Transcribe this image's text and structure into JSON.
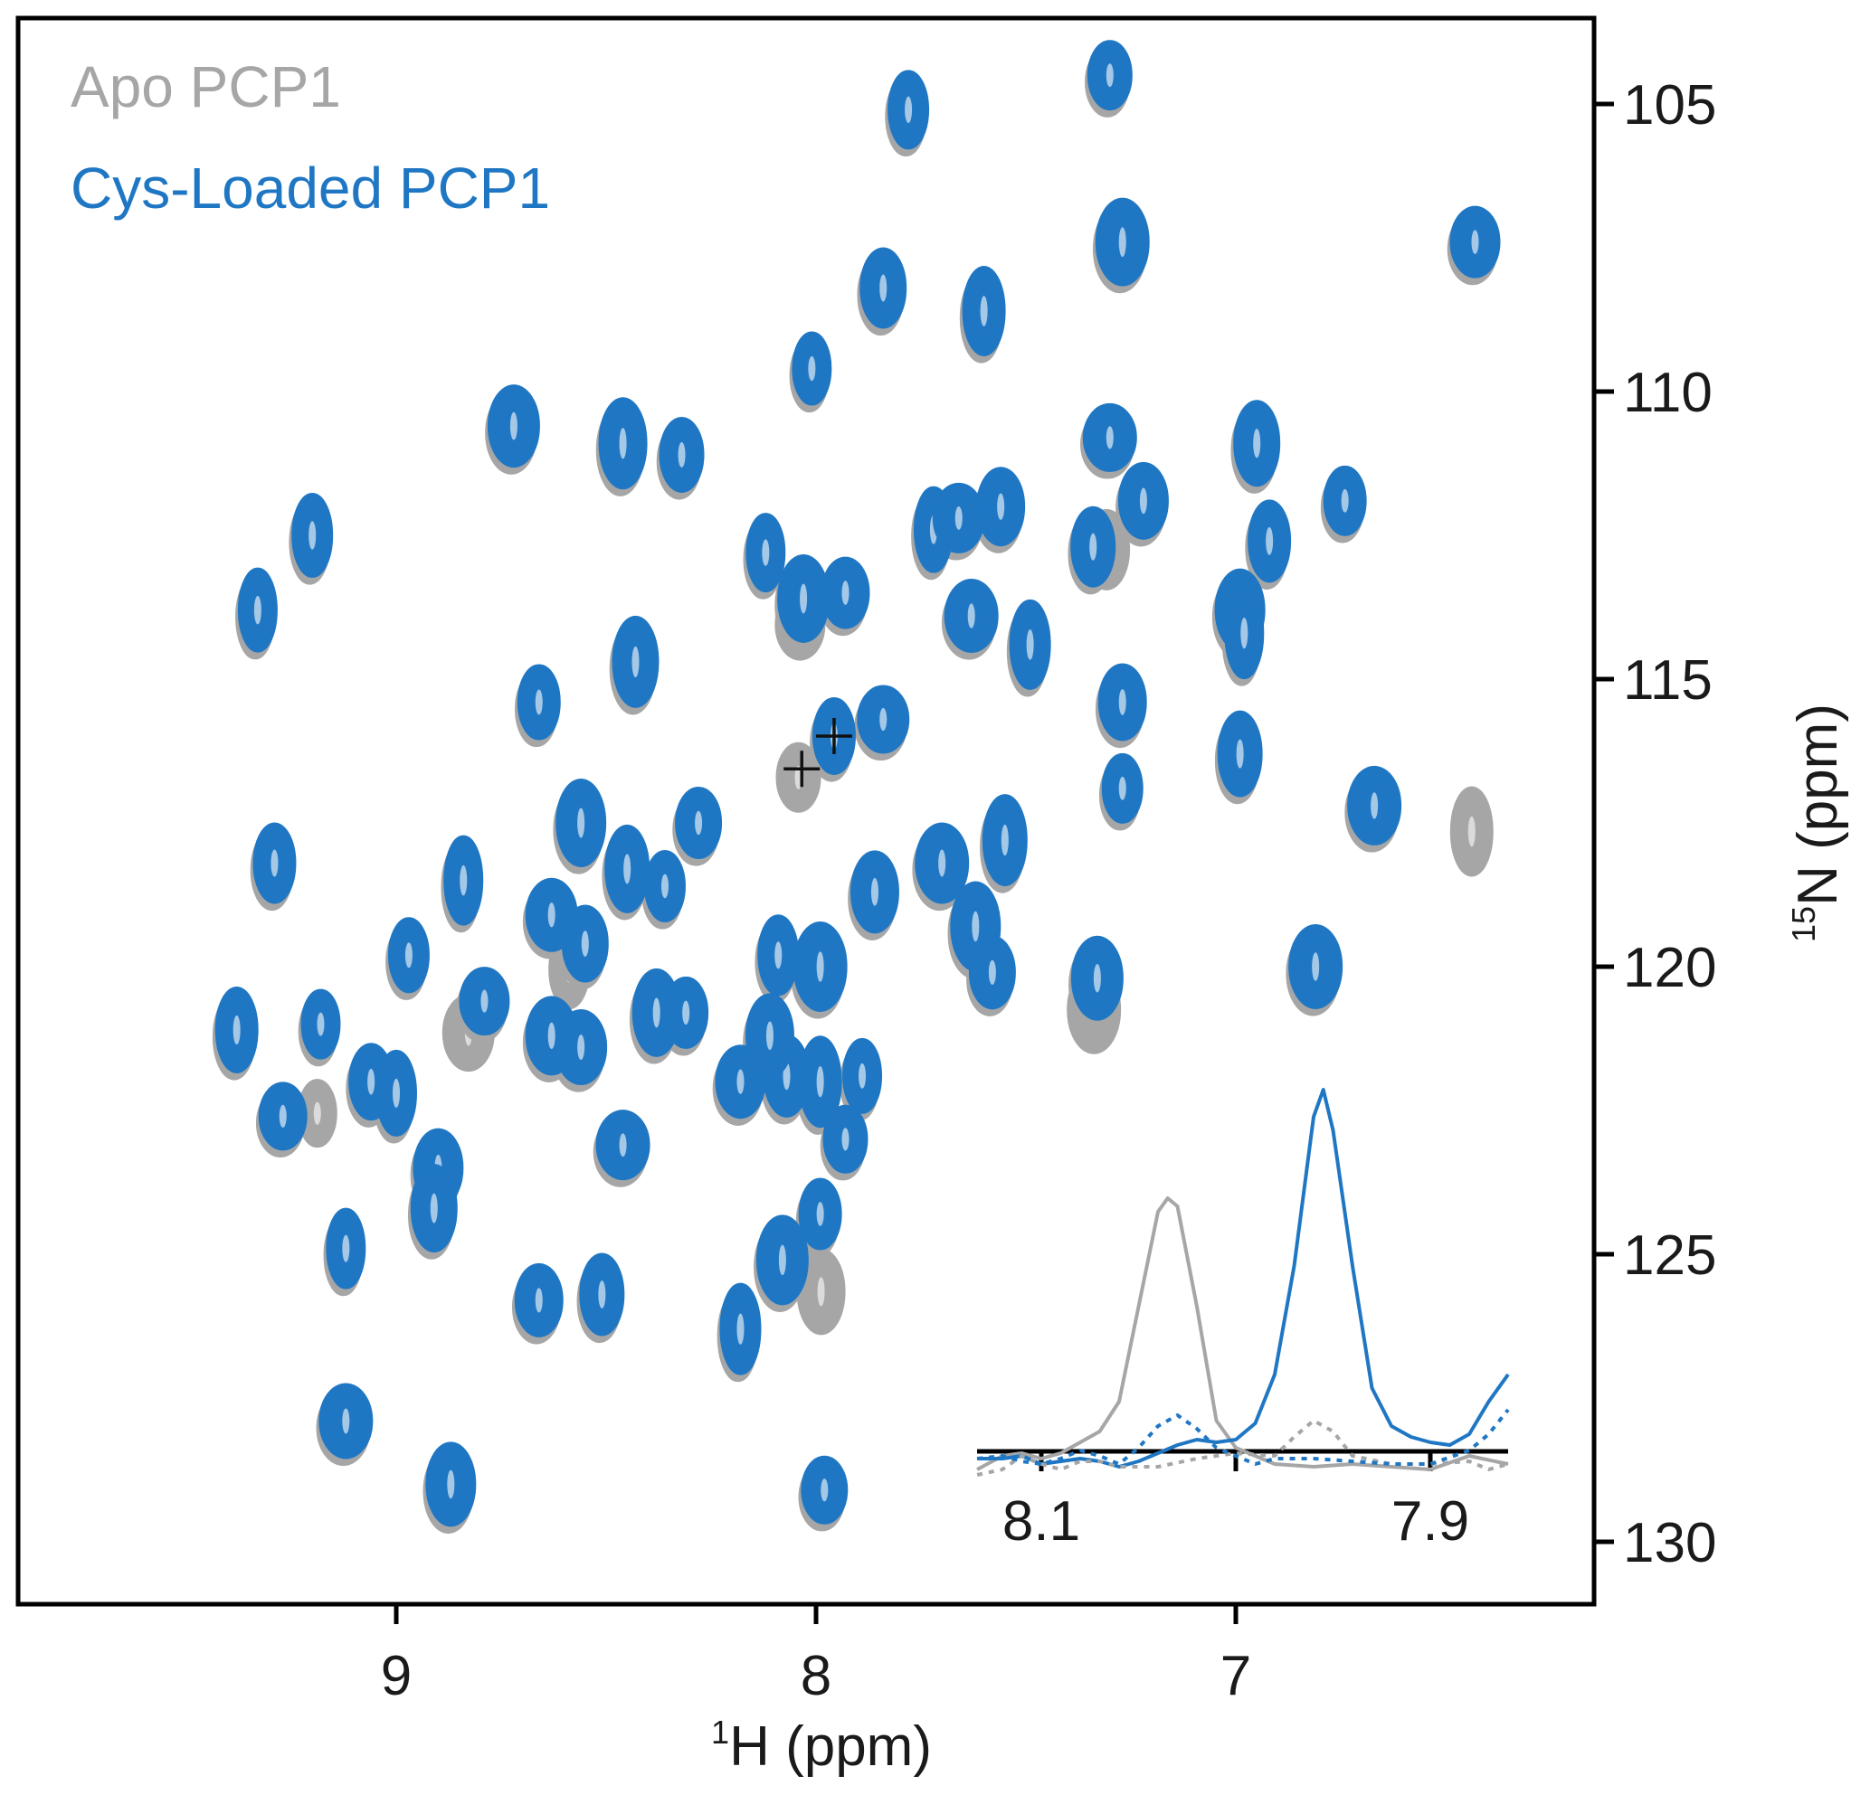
{
  "chart_data": {
    "type": "scatter",
    "subtype": "2D 1H-15N HSQC overlay",
    "title": "",
    "xlabel": "1H (ppm)",
    "xlabel_sup": "1",
    "xlabel_main": "H (ppm)",
    "ylabel": "15N (ppm)",
    "ylabel_sup": "15",
    "ylabel_main": "N (ppm)",
    "xlim": [
      9.9,
      6.15
    ],
    "ylim": [
      103.5,
      130.6
    ],
    "x_reversed": true,
    "y_reversed": true,
    "xticks": [
      9,
      8,
      7
    ],
    "xtick_labels": [
      "9",
      "8",
      "7"
    ],
    "yticks": [
      105,
      110,
      115,
      120,
      125,
      130
    ],
    "ytick_labels": [
      "105",
      "110",
      "115",
      "120",
      "125",
      "130"
    ],
    "y_axis_side": "right",
    "grid": false,
    "legend": {
      "position": "top-left",
      "entries": [
        {
          "label": "Apo PCP1",
          "color": "#a6a6a6"
        },
        {
          "label": "Cys-Loaded PCP1",
          "color": "#1f77c4"
        }
      ]
    },
    "series": [
      {
        "name": "Cys-Loaded PCP1",
        "color": "#1f77c4",
        "points": [
          [
            7.3,
            104.5
          ],
          [
            7.78,
            105.1
          ],
          [
            7.27,
            107.4
          ],
          [
            6.43,
            107.4
          ],
          [
            7.84,
            108.2
          ],
          [
            7.6,
            108.6
          ],
          [
            8.01,
            109.6
          ],
          [
            8.72,
            110.6
          ],
          [
            8.46,
            110.9
          ],
          [
            8.32,
            111.1
          ],
          [
            9.2,
            112.5
          ],
          [
            7.3,
            110.8
          ],
          [
            7.22,
            111.9
          ],
          [
            6.95,
            110.9
          ],
          [
            6.74,
            111.9
          ],
          [
            8.12,
            112.8
          ],
          [
            8.03,
            113.6
          ],
          [
            7.93,
            113.5
          ],
          [
            7.34,
            112.7
          ],
          [
            7.49,
            114.4
          ],
          [
            7.63,
            113.9
          ],
          [
            6.99,
            113.8
          ],
          [
            8.43,
            114.7
          ],
          [
            8.66,
            115.4
          ],
          [
            9.33,
            113.8
          ],
          [
            7.84,
            115.7
          ],
          [
            7.27,
            115.4
          ],
          [
            6.99,
            116.3
          ],
          [
            7.27,
            116.9
          ],
          [
            6.67,
            117.2
          ],
          [
            8.56,
            117.5
          ],
          [
            8.28,
            117.5
          ],
          [
            9.29,
            118.2
          ],
          [
            8.84,
            118.5
          ],
          [
            8.63,
            119.1
          ],
          [
            7.86,
            118.7
          ],
          [
            7.55,
            117.8
          ],
          [
            8.97,
            119.8
          ],
          [
            6.81,
            120.0
          ],
          [
            8.79,
            120.6
          ],
          [
            8.55,
            119.6
          ],
          [
            9.38,
            121.1
          ],
          [
            9.18,
            121.0
          ],
          [
            8.63,
            121.2
          ],
          [
            8.38,
            120.8
          ],
          [
            8.31,
            120.8
          ],
          [
            8.09,
            119.8
          ],
          [
            7.99,
            120.0
          ],
          [
            8.18,
            122.0
          ],
          [
            8.07,
            121.9
          ],
          [
            7.99,
            122.0
          ],
          [
            7.89,
            121.9
          ],
          [
            7.33,
            120.2
          ],
          [
            9.27,
            122.6
          ],
          [
            9.06,
            122.0
          ],
          [
            9.0,
            122.2
          ],
          [
            8.46,
            123.1
          ],
          [
            8.9,
            123.5
          ],
          [
            8.91,
            124.2
          ],
          [
            7.99,
            124.3
          ],
          [
            9.12,
            124.9
          ],
          [
            8.08,
            125.1
          ],
          [
            8.66,
            125.8
          ],
          [
            8.51,
            125.7
          ],
          [
            8.18,
            126.3
          ],
          [
            9.12,
            127.9
          ],
          [
            8.87,
            129.0
          ],
          [
            7.98,
            129.1
          ],
          [
            7.957,
            115.99
          ],
          [
            7.72,
            112.4
          ],
          [
            7.66,
            112.2
          ],
          [
            7.56,
            112.0
          ],
          [
            8.45,
            118.3
          ],
          [
            8.36,
            118.6
          ],
          [
            7.7,
            118.2
          ],
          [
            7.62,
            119.3
          ],
          [
            7.58,
            120.1
          ],
          [
            6.92,
            112.6
          ],
          [
            6.98,
            114.2
          ],
          [
            8.56,
            121.4
          ],
          [
            8.11,
            121.2
          ],
          [
            7.93,
            123.0
          ]
        ]
      },
      {
        "name": "Apo PCP1",
        "color": "#a6a6a6",
        "points": [
          [
            9.18,
            122.4
          ],
          [
            8.82,
            121.0
          ],
          [
            7.98,
            125.5
          ],
          [
            8.034,
            116.56
          ],
          [
            8.58,
            119.9
          ],
          [
            7.33,
            120.6
          ],
          [
            8.03,
            113.9
          ],
          [
            7.3,
            112.6
          ],
          [
            6.43,
            117.5
          ]
        ]
      }
    ],
    "crosshairs": [
      {
        "series": "Apo PCP1",
        "x": 8.034,
        "y": 116.56
      },
      {
        "series": "Cys-Loaded PCP1",
        "x": 7.957,
        "y": 115.99
      }
    ],
    "inset": {
      "type": "line",
      "description": "1D 1H slices through the marked peaks",
      "xlim": [
        8.133,
        7.86
      ],
      "xticks": [
        8.1,
        8.0,
        7.9
      ],
      "xtick_labels": [
        "8.1",
        "",
        "7.9"
      ],
      "series": [
        {
          "name": "Apo PCP1 (solid)",
          "color": "#a6a6a6",
          "style": "solid",
          "x": [
            8.133,
            8.12,
            8.11,
            8.1,
            8.09,
            8.08,
            8.07,
            8.06,
            8.05,
            8.04,
            8.035,
            8.03,
            8.02,
            8.01,
            8.0,
            7.99,
            7.98,
            7.96,
            7.94,
            7.92,
            7.9,
            7.88,
            7.86
          ],
          "y": [
            0.0,
            0.05,
            0.06,
            0.04,
            0.06,
            0.1,
            0.14,
            0.25,
            0.6,
            0.95,
            1.0,
            0.97,
            0.6,
            0.18,
            0.08,
            0.05,
            0.02,
            0.01,
            0.02,
            0.01,
            0.0,
            0.05,
            0.02
          ]
        },
        {
          "name": "Cys-Loaded PCP1 (solid)",
          "color": "#1f77c4",
          "style": "solid",
          "x": [
            8.133,
            8.12,
            8.11,
            8.1,
            8.09,
            8.08,
            8.07,
            8.06,
            8.05,
            8.04,
            8.03,
            8.02,
            8.01,
            8.0,
            7.99,
            7.98,
            7.97,
            7.96,
            7.955,
            7.95,
            7.94,
            7.93,
            7.92,
            7.91,
            7.9,
            7.89,
            7.88,
            7.87,
            7.86
          ],
          "y": [
            0.04,
            0.04,
            0.05,
            0.02,
            0.03,
            0.04,
            0.03,
            0.01,
            0.03,
            0.06,
            0.09,
            0.11,
            0.1,
            0.11,
            0.17,
            0.35,
            0.75,
            1.3,
            1.4,
            1.25,
            0.75,
            0.3,
            0.16,
            0.12,
            0.1,
            0.09,
            0.13,
            0.25,
            0.35
          ]
        },
        {
          "name": "Apo PCP1 (dotted)",
          "color": "#a6a6a6",
          "style": "dotted",
          "x": [
            8.133,
            8.12,
            8.11,
            8.1,
            8.09,
            8.08,
            8.07,
            8.06,
            8.04,
            8.02,
            8.0,
            7.98,
            7.97,
            7.96,
            7.95,
            7.94,
            7.92,
            7.9,
            7.88,
            7.87,
            7.86
          ],
          "y": [
            -0.02,
            0.0,
            0.05,
            0.02,
            0.0,
            0.03,
            0.03,
            0.01,
            0.01,
            0.04,
            0.06,
            0.05,
            0.12,
            0.18,
            0.14,
            0.05,
            0.02,
            0.02,
            0.03,
            0.0,
            0.02
          ]
        },
        {
          "name": "Cys-Loaded PCP1 (dotted)",
          "color": "#1f77c4",
          "style": "dotted",
          "x": [
            8.133,
            8.12,
            8.11,
            8.1,
            8.09,
            8.08,
            8.07,
            8.06,
            8.05,
            8.04,
            8.03,
            8.02,
            8.01,
            8.0,
            7.99,
            7.98,
            7.96,
            7.94,
            7.92,
            7.9,
            7.88,
            7.87,
            7.86
          ],
          "y": [
            0.04,
            0.05,
            0.03,
            0.02,
            0.04,
            0.07,
            0.05,
            0.02,
            0.08,
            0.16,
            0.2,
            0.15,
            0.08,
            0.05,
            0.02,
            0.04,
            0.04,
            0.03,
            0.02,
            0.02,
            0.07,
            0.13,
            0.22
          ]
        }
      ]
    }
  }
}
